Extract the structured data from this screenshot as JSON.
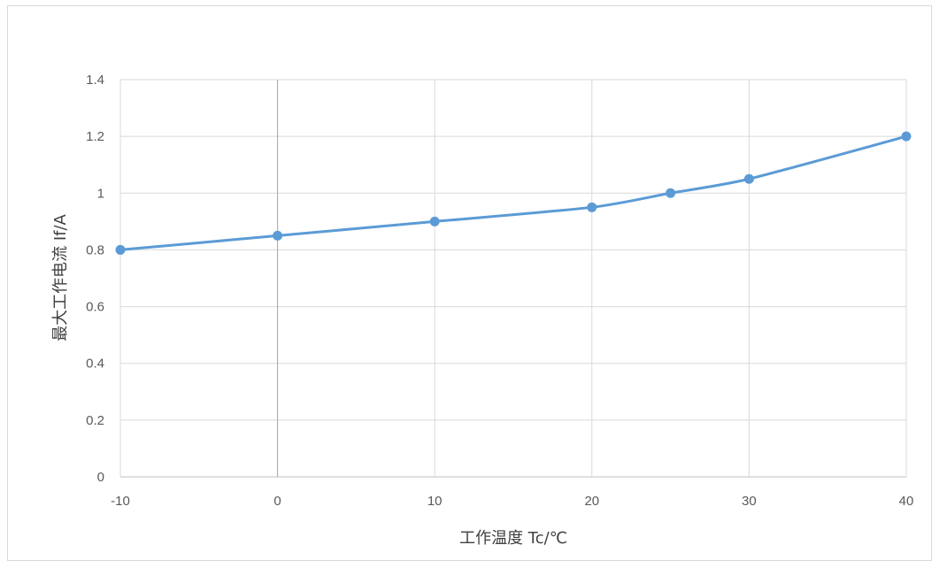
{
  "chart_data": {
    "type": "line",
    "title": "",
    "xlabel": "工作温度 Tc/℃",
    "ylabel": "最大工作电流 If/A",
    "xlim": [
      -10,
      40
    ],
    "ylim": [
      0,
      1.4
    ],
    "x_ticks": [
      "-10",
      "0",
      "10",
      "20",
      "30",
      "40"
    ],
    "y_ticks": [
      "0",
      "0.2",
      "0.4",
      "0.6",
      "0.8",
      "1",
      "1.2",
      "1.4"
    ],
    "grid": true,
    "legend": "none",
    "series": [
      {
        "color": "#5b9bd5",
        "x": [
          -10,
          0,
          10,
          20,
          25,
          30,
          40
        ],
        "y": [
          0.8,
          0.85,
          0.9,
          0.95,
          1.0,
          1.05,
          1.2
        ]
      }
    ]
  }
}
